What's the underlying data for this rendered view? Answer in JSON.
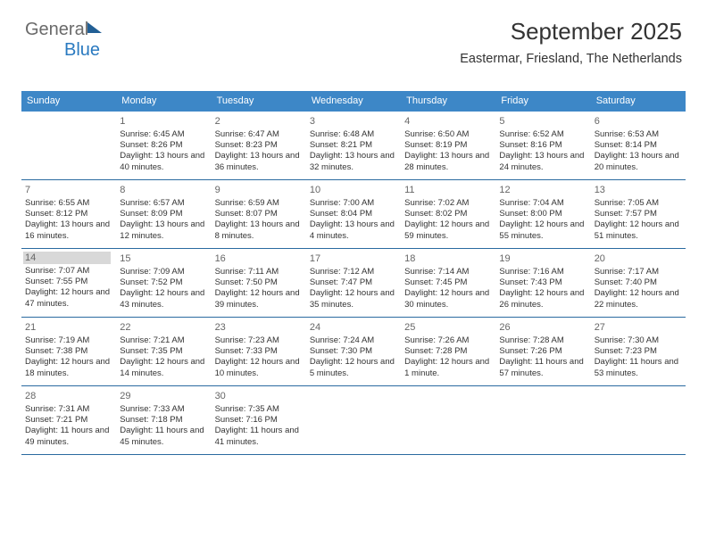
{
  "logo": {
    "part1": "General",
    "part2": "Blue"
  },
  "title": "September 2025",
  "subtitle": "Eastermar, Friesland, The Netherlands",
  "colors": {
    "header_bg": "#3d87c7",
    "header_text": "#ffffff",
    "divider": "#2a6aa0",
    "highlight_bg": "#d8d8d8",
    "text": "#333333",
    "daynum": "#666666"
  },
  "dayHeaders": [
    "Sunday",
    "Monday",
    "Tuesday",
    "Wednesday",
    "Thursday",
    "Friday",
    "Saturday"
  ],
  "highlightedDay": 14,
  "weeks": [
    [
      null,
      {
        "n": 1,
        "sr": "6:45 AM",
        "ss": "8:26 PM",
        "dl": "13 hours and 40 minutes."
      },
      {
        "n": 2,
        "sr": "6:47 AM",
        "ss": "8:23 PM",
        "dl": "13 hours and 36 minutes."
      },
      {
        "n": 3,
        "sr": "6:48 AM",
        "ss": "8:21 PM",
        "dl": "13 hours and 32 minutes."
      },
      {
        "n": 4,
        "sr": "6:50 AM",
        "ss": "8:19 PM",
        "dl": "13 hours and 28 minutes."
      },
      {
        "n": 5,
        "sr": "6:52 AM",
        "ss": "8:16 PM",
        "dl": "13 hours and 24 minutes."
      },
      {
        "n": 6,
        "sr": "6:53 AM",
        "ss": "8:14 PM",
        "dl": "13 hours and 20 minutes."
      }
    ],
    [
      {
        "n": 7,
        "sr": "6:55 AM",
        "ss": "8:12 PM",
        "dl": "13 hours and 16 minutes."
      },
      {
        "n": 8,
        "sr": "6:57 AM",
        "ss": "8:09 PM",
        "dl": "13 hours and 12 minutes."
      },
      {
        "n": 9,
        "sr": "6:59 AM",
        "ss": "8:07 PM",
        "dl": "13 hours and 8 minutes."
      },
      {
        "n": 10,
        "sr": "7:00 AM",
        "ss": "8:04 PM",
        "dl": "13 hours and 4 minutes."
      },
      {
        "n": 11,
        "sr": "7:02 AM",
        "ss": "8:02 PM",
        "dl": "12 hours and 59 minutes."
      },
      {
        "n": 12,
        "sr": "7:04 AM",
        "ss": "8:00 PM",
        "dl": "12 hours and 55 minutes."
      },
      {
        "n": 13,
        "sr": "7:05 AM",
        "ss": "7:57 PM",
        "dl": "12 hours and 51 minutes."
      }
    ],
    [
      {
        "n": 14,
        "sr": "7:07 AM",
        "ss": "7:55 PM",
        "dl": "12 hours and 47 minutes."
      },
      {
        "n": 15,
        "sr": "7:09 AM",
        "ss": "7:52 PM",
        "dl": "12 hours and 43 minutes."
      },
      {
        "n": 16,
        "sr": "7:11 AM",
        "ss": "7:50 PM",
        "dl": "12 hours and 39 minutes."
      },
      {
        "n": 17,
        "sr": "7:12 AM",
        "ss": "7:47 PM",
        "dl": "12 hours and 35 minutes."
      },
      {
        "n": 18,
        "sr": "7:14 AM",
        "ss": "7:45 PM",
        "dl": "12 hours and 30 minutes."
      },
      {
        "n": 19,
        "sr": "7:16 AM",
        "ss": "7:43 PM",
        "dl": "12 hours and 26 minutes."
      },
      {
        "n": 20,
        "sr": "7:17 AM",
        "ss": "7:40 PM",
        "dl": "12 hours and 22 minutes."
      }
    ],
    [
      {
        "n": 21,
        "sr": "7:19 AM",
        "ss": "7:38 PM",
        "dl": "12 hours and 18 minutes."
      },
      {
        "n": 22,
        "sr": "7:21 AM",
        "ss": "7:35 PM",
        "dl": "12 hours and 14 minutes."
      },
      {
        "n": 23,
        "sr": "7:23 AM",
        "ss": "7:33 PM",
        "dl": "12 hours and 10 minutes."
      },
      {
        "n": 24,
        "sr": "7:24 AM",
        "ss": "7:30 PM",
        "dl": "12 hours and 5 minutes."
      },
      {
        "n": 25,
        "sr": "7:26 AM",
        "ss": "7:28 PM",
        "dl": "12 hours and 1 minute."
      },
      {
        "n": 26,
        "sr": "7:28 AM",
        "ss": "7:26 PM",
        "dl": "11 hours and 57 minutes."
      },
      {
        "n": 27,
        "sr": "7:30 AM",
        "ss": "7:23 PM",
        "dl": "11 hours and 53 minutes."
      }
    ],
    [
      {
        "n": 28,
        "sr": "7:31 AM",
        "ss": "7:21 PM",
        "dl": "11 hours and 49 minutes."
      },
      {
        "n": 29,
        "sr": "7:33 AM",
        "ss": "7:18 PM",
        "dl": "11 hours and 45 minutes."
      },
      {
        "n": 30,
        "sr": "7:35 AM",
        "ss": "7:16 PM",
        "dl": "11 hours and 41 minutes."
      },
      null,
      null,
      null,
      null
    ]
  ],
  "labels": {
    "sunrise": "Sunrise: ",
    "sunset": "Sunset: ",
    "daylight": "Daylight: "
  }
}
